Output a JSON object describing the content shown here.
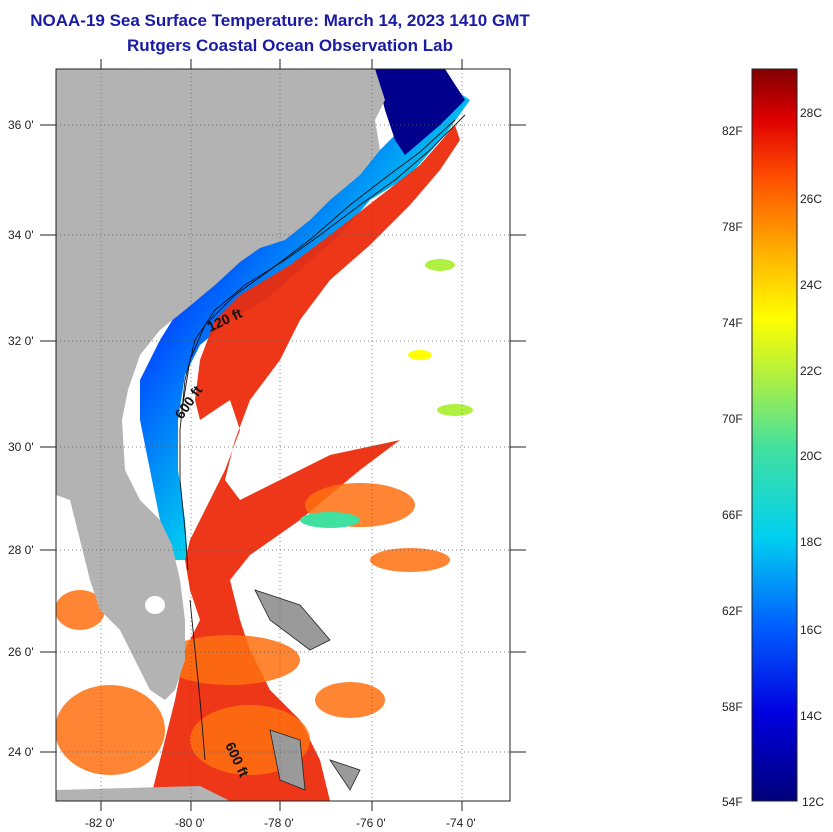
{
  "title": {
    "line1": "NOAA-19 Sea Surface Temperature:  March 14, 2023 1410 GMT",
    "line2": "Rutgers Coastal Ocean Observation Lab"
  },
  "axes": {
    "lat_labels": [
      "24 0'",
      "26 0'",
      "28 0'",
      "30 0'",
      "32 0'",
      "34 0'",
      "36 0'"
    ],
    "lon_labels": [
      "-82 0'",
      "-80 0'",
      "-78 0'",
      "-76 0'",
      "-74 0'"
    ]
  },
  "contours": {
    "label_120": "120 ft",
    "label_600a": "600 ft",
    "label_600b": "600 ft"
  },
  "colorbar": {
    "fahrenheit": [
      "82F",
      "78F",
      "74F",
      "70F",
      "66F",
      "62F",
      "58F",
      "54F"
    ],
    "celsius": [
      "28C",
      "26C",
      "24C",
      "22C",
      "20C",
      "18C",
      "16C",
      "14C",
      "12C"
    ]
  },
  "colors": {
    "land": "#b3b3b3",
    "title": "#1a1aa6",
    "cold": "#00007a",
    "warm": "#e82a10"
  }
}
